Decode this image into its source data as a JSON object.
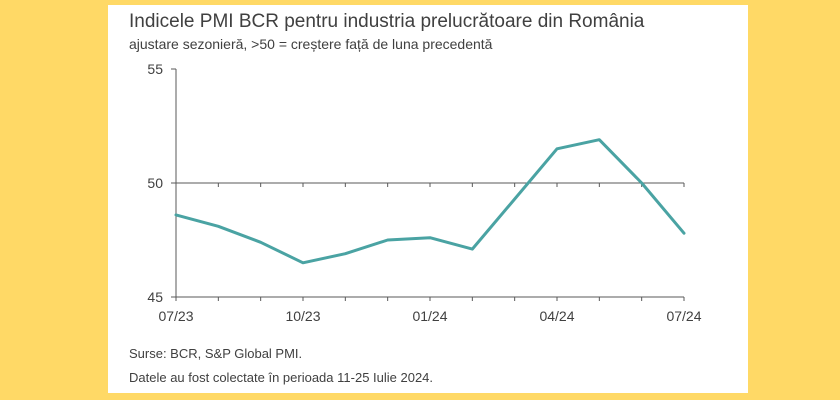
{
  "colors": {
    "page_background": "#ffd966",
    "card_background": "#ffffff",
    "line": "#4aa3a3",
    "axis": "#595959",
    "text": "#404040"
  },
  "chart_data": {
    "type": "line",
    "title": "Indicele PMI BCR pentru industria prelucrătoare din România",
    "subtitle": "ajustare sezonieră, >50 = creștere față de luna precedentă",
    "x_tick_labels": [
      "07/23",
      "10/23",
      "01/24",
      "04/24",
      "07/24"
    ],
    "y_tick_labels": [
      "55",
      "50",
      "45"
    ],
    "ylim": [
      45,
      55
    ],
    "y_ticks": [
      45,
      50,
      55
    ],
    "reference_line": 50,
    "grid": false,
    "legend": "none",
    "series": [
      {
        "x": [
          "2023-07",
          "2023-08",
          "2023-09",
          "2023-10",
          "2023-11",
          "2023-12",
          "2024-01",
          "2024-02",
          "2024-03",
          "2024-04",
          "2024-05",
          "2024-06",
          "2024-07"
        ],
        "values": [
          48.6,
          48.1,
          47.4,
          46.5,
          46.9,
          47.5,
          47.6,
          47.1,
          49.3,
          51.5,
          51.9,
          50.0,
          47.8
        ]
      }
    ]
  },
  "footer": {
    "source": "Surse: BCR, S&P Global PMI.",
    "note": "Datele au fost colectate în perioada 11-25 Iulie 2024."
  }
}
